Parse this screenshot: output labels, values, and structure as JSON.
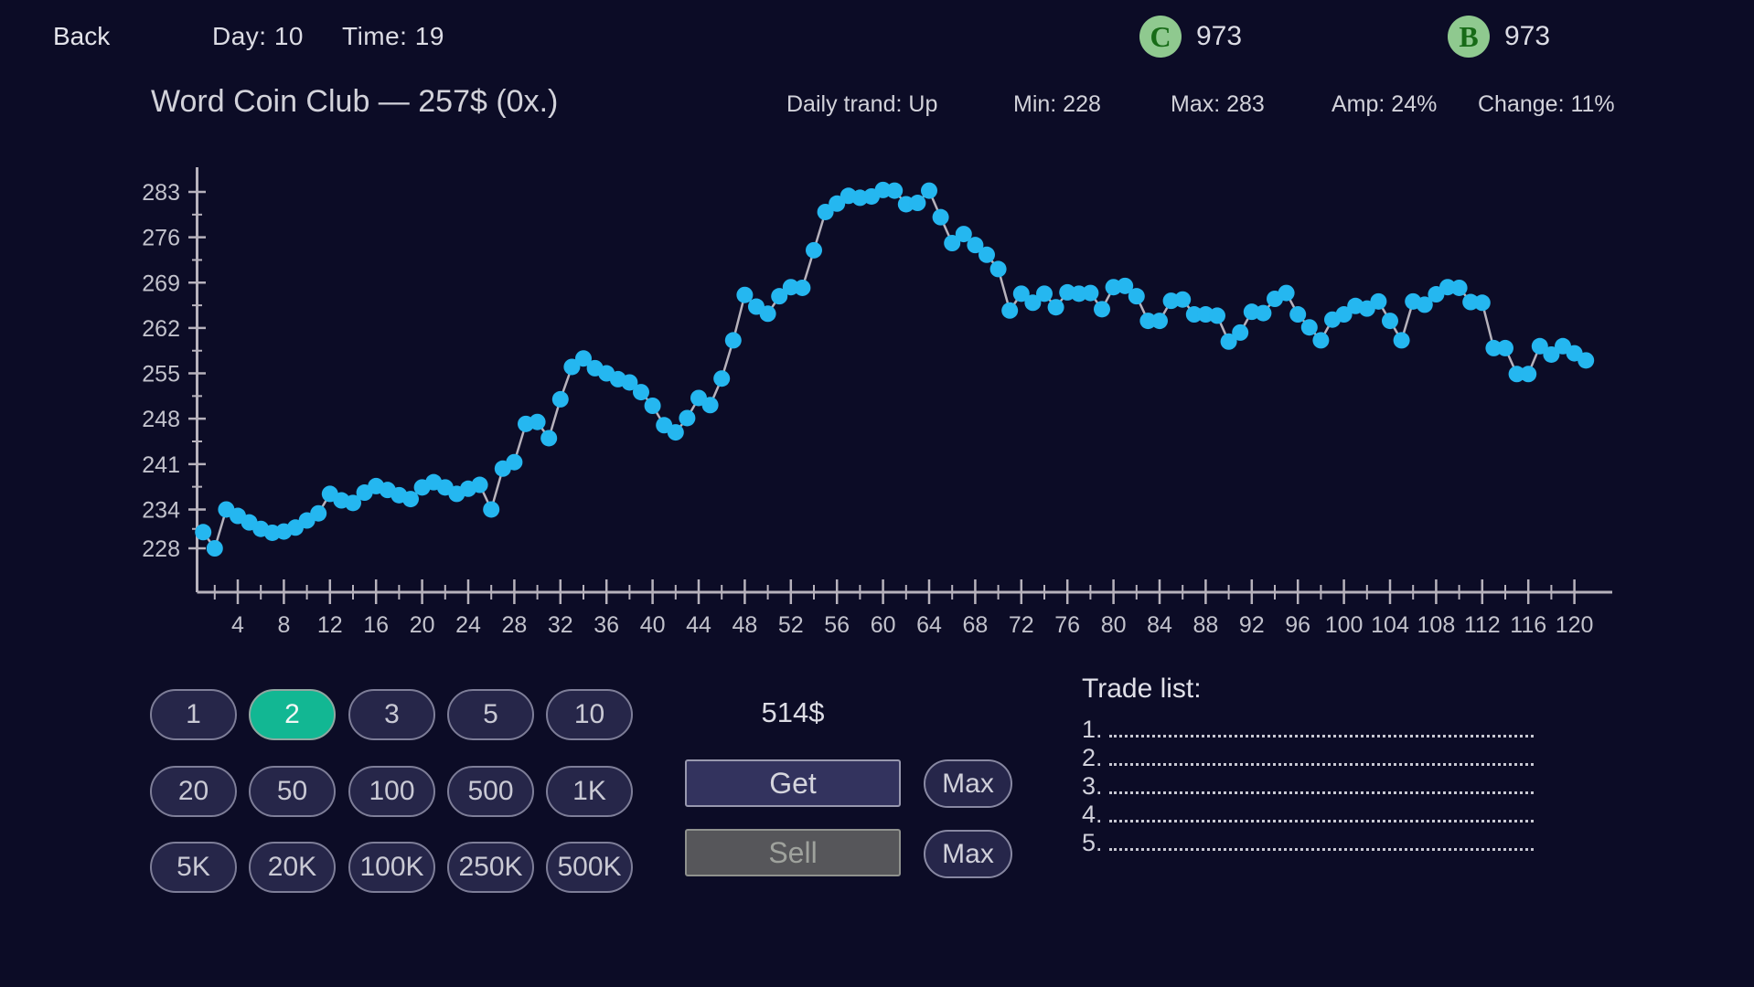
{
  "topbar": {
    "back_label": "Back",
    "day_label": "Day: 10",
    "time_label": "Time: 19",
    "coin_c": {
      "symbol": "C",
      "amount": "973"
    },
    "coin_b": {
      "symbol": "B",
      "amount": "973"
    }
  },
  "header": {
    "title": "Word Coin Club — 257$ (0x.)",
    "daily_trend": "Daily trand: Up",
    "min": "Min: 228",
    "max": "Max: 283",
    "amp": "Amp: 24%",
    "change": "Change: 11%"
  },
  "chart_data": {
    "type": "line",
    "title": "Word Coin Club — 257$ (0x.)",
    "series": [
      {
        "name": "price",
        "values": [
          230.5,
          228,
          234,
          233,
          232,
          231,
          230.4,
          230.6,
          231.2,
          232.3,
          233.4,
          236.4,
          235.4,
          235,
          236.6,
          237.6,
          237,
          236.2,
          235.6,
          237.4,
          238.2,
          237.4,
          236.4,
          237.2,
          237.8,
          234,
          240.3,
          241.3,
          247.2,
          247.5,
          245,
          251,
          256,
          257.3,
          255.8,
          255,
          254.1,
          253.6,
          252.1,
          250,
          247,
          245.9,
          248.1,
          251.2,
          250.1,
          254.2,
          260.1,
          267.1,
          265.3,
          264.2,
          266.9,
          268.3,
          268.2,
          274,
          279.9,
          281.2,
          282.4,
          282.1,
          282.3,
          283.3,
          283.2,
          281.1,
          281.3,
          283.2,
          279.1,
          275.1,
          276.5,
          274.8,
          273.3,
          271.1,
          264.7,
          267.3,
          265.9,
          267.3,
          265.2,
          267.5,
          267.3,
          267.4,
          264.9,
          268.3,
          268.5,
          266.9,
          263.1,
          263.1,
          266.2,
          266.4,
          264.1,
          264.1,
          263.9,
          259.9,
          261.3,
          264.5,
          264.3,
          266.5,
          267.4,
          264.1,
          262.1,
          260.1,
          263.3,
          264.1,
          265.4,
          265,
          266.1,
          263.1,
          260.1,
          266.1,
          265.6,
          267.2,
          268.3,
          268.2,
          266,
          265.9,
          258.9,
          258.9,
          254.9,
          254.9,
          259.2,
          257.9,
          259.2,
          258.1,
          257
        ]
      }
    ],
    "x_first_index": 1,
    "x_ticks": {
      "start": 4,
      "step": 4,
      "end": 120
    },
    "y_ticks": [
      283,
      276,
      269,
      262,
      255,
      248,
      241,
      234,
      228
    ],
    "ylim": [
      228,
      283
    ],
    "xlabel": "",
    "ylabel": "",
    "grid": false,
    "legend": null,
    "current_price": 257,
    "point_color": "#25b7f0",
    "line_color": "#b7b2bc",
    "axis_color": "#b7b2bc",
    "tick_label_color": "#c2c2cc"
  },
  "controls": {
    "amount_rows": [
      [
        "1",
        "2",
        "3",
        "5",
        "10"
      ],
      [
        "20",
        "50",
        "100",
        "500",
        "1K"
      ],
      [
        "5K",
        "20K",
        "100K",
        "250K",
        "500K"
      ]
    ],
    "selected_amount": "2",
    "cost_label": "514$",
    "get_label": "Get",
    "sell_label": "Sell",
    "max_label": "Max",
    "selected_color": "#12b793"
  },
  "trade_list": {
    "title": "Trade list:",
    "items": [
      "1.",
      "2.",
      "3.",
      "4.",
      "5."
    ]
  }
}
